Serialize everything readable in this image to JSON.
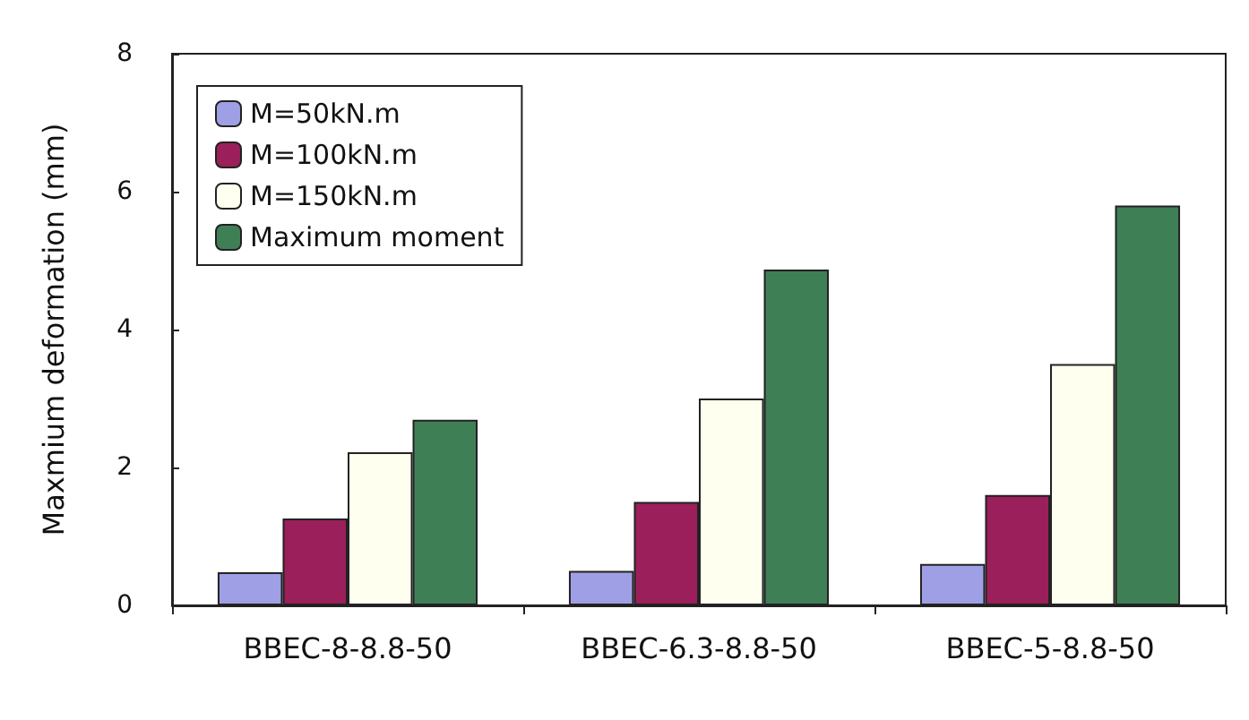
{
  "chart_data": {
    "type": "bar",
    "ylabel": "Maxmium deformation (mm)",
    "categories": [
      "BBEC-8-8.8-50",
      "BBEC-6.3-8.8-50",
      "BBEC-5-8.8-50"
    ],
    "series": [
      {
        "name": "M=50kN.m",
        "color": "#9f9fe6",
        "values": [
          0.48,
          0.5,
          0.6
        ]
      },
      {
        "name": "M=100kN.m",
        "color": "#9b1f5a",
        "values": [
          1.26,
          1.5,
          1.6
        ]
      },
      {
        "name": "M=150kN.m",
        "color": "#fffff0",
        "values": [
          2.22,
          3.0,
          3.5
        ]
      },
      {
        "name": "Maximum moment",
        "color": "#3f7f56",
        "values": [
          2.69,
          4.87,
          5.8
        ]
      }
    ],
    "ylim": [
      0,
      8
    ],
    "yticks": [
      0,
      2,
      4,
      6,
      8
    ],
    "grid": false,
    "legend": "top left"
  }
}
